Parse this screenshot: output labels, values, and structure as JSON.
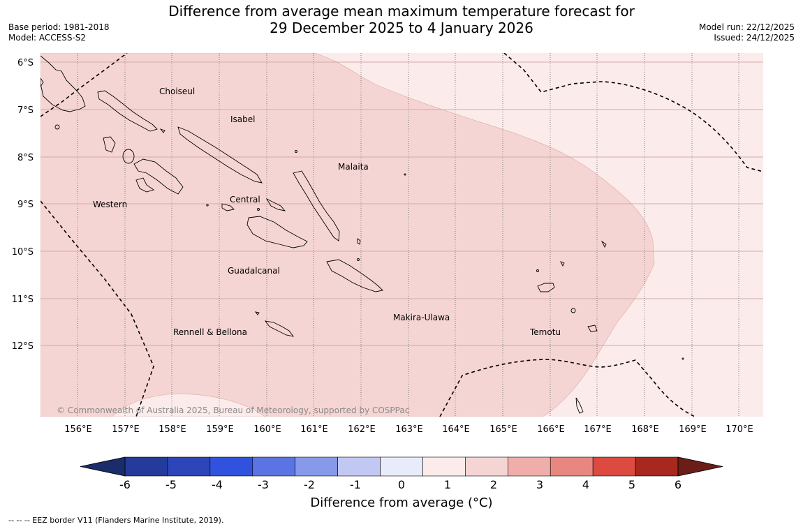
{
  "title": {
    "line1": "Difference from average mean maximum temperature forecast for",
    "line2": "29 December 2025 to 4 January 2026"
  },
  "meta": {
    "base_period": "Base period: 1981-2018",
    "model": "Model: ACCESS-S2",
    "model_run": "Model run: 22/12/2025",
    "issued": "Issued: 24/12/2025"
  },
  "map": {
    "lat_labels": [
      "6°S",
      "7°S",
      "8°S",
      "9°S",
      "10°S",
      "11°S",
      "12°S"
    ],
    "lon_labels": [
      "156°E",
      "157°E",
      "158°E",
      "159°E",
      "160°E",
      "161°E",
      "162°E",
      "163°E",
      "164°E",
      "165°E",
      "166°E",
      "167°E",
      "168°E",
      "169°E",
      "170°E"
    ],
    "provinces": {
      "choiseul": "Choiseul",
      "isabel": "Isabel",
      "malaita": "Malaita",
      "western": "Western",
      "central": "Central",
      "guadalcanal": "Guadalcanal",
      "makira": "Makira-Ulawa",
      "temotu": "Temotu",
      "rennell": "Rennell & Bellona"
    },
    "copyright": "© Commonwealth of Australia 2025, Bureau of Meteorology, supported by COSPPac",
    "colors": {
      "anomaly_1_to_2": "#f5d5d3",
      "anomaly_0_to_1": "#fbebea"
    }
  },
  "colorbar": {
    "ticks": [
      "-6",
      "-5",
      "-4",
      "-3",
      "-2",
      "-1",
      "0",
      "1",
      "2",
      "3",
      "4",
      "5",
      "6"
    ],
    "colors": [
      "#243b9c",
      "#2c45b9",
      "#3152de",
      "#5b74e4",
      "#8799ea",
      "#c1c9f3",
      "#e8ebfa",
      "#fbebea",
      "#f5d5d3",
      "#efaeaa",
      "#e8877f",
      "#dd4a40",
      "#a8271f"
    ],
    "extend_low": "#1b2c6b",
    "extend_high": "#6b1d18",
    "title": "Difference from average (°C)"
  },
  "footnote": "--  --  -- EEZ border V11 (Flanders Marine Institute, 2019)."
}
